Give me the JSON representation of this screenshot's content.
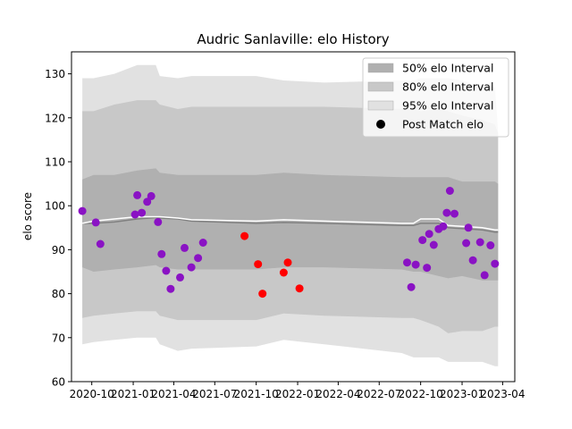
{
  "chart_data": {
    "type": "scatter",
    "title": "Audric Sanlaville: elo History",
    "ylabel": "elo score",
    "xlabel": "",
    "ylim": [
      60,
      135
    ],
    "xlim": [
      "2020-08-17",
      "2023-04-28"
    ],
    "yticks": [
      60,
      70,
      80,
      90,
      100,
      110,
      120,
      130
    ],
    "xticks": [
      {
        "date": "2020-10-01",
        "label": "2020-10"
      },
      {
        "date": "2021-01-01",
        "label": "2021-01"
      },
      {
        "date": "2021-04-01",
        "label": "2021-04"
      },
      {
        "date": "2021-07-01",
        "label": "2021-07"
      },
      {
        "date": "2021-10-01",
        "label": "2021-10"
      },
      {
        "date": "2022-01-01",
        "label": "2022-01"
      },
      {
        "date": "2022-04-01",
        "label": "2022-04"
      },
      {
        "date": "2022-07-01",
        "label": "2022-07"
      },
      {
        "date": "2022-10-01",
        "label": "2022-10"
      },
      {
        "date": "2023-01-01",
        "label": "2023-01"
      },
      {
        "date": "2023-04-01",
        "label": "2023-04"
      }
    ],
    "legend": {
      "placement": "top-right",
      "entries": [
        {
          "label": "50% elo Interval",
          "color": "#b0b0b0"
        },
        {
          "label": "80% elo Interval",
          "color": "#c8c8c8"
        },
        {
          "label": "95% elo Interval",
          "color": "#e1e1e1"
        },
        {
          "label": "Post Match elo",
          "color": "#000000"
        }
      ]
    },
    "colors": {
      "band50": "#b0b0b0",
      "band80": "#c8c8c8",
      "band95": "#e1e1e1",
      "mean_line": "#ffffff",
      "median_line": "#808080",
      "point_purple": "#8a12c4",
      "point_red": "#ff0000"
    },
    "bands": [
      {
        "date": "2020-09-10",
        "mean": 96.0,
        "median": 96.0,
        "lo50": 86,
        "hi50": 106,
        "lo80": 74.5,
        "hi80": 121.5,
        "lo95": 68.5,
        "hi95": 129
      },
      {
        "date": "2020-10-05",
        "mean": 96.5,
        "median": 96.0,
        "lo50": 85,
        "hi50": 107,
        "lo80": 75,
        "hi80": 121.5,
        "lo95": 69,
        "hi95": 129
      },
      {
        "date": "2020-11-20",
        "mean": 97.0,
        "median": 96.3,
        "lo50": 85.5,
        "hi50": 107,
        "lo80": 75.5,
        "hi80": 123,
        "lo95": 69.5,
        "hi95": 130
      },
      {
        "date": "2021-01-10",
        "mean": 97.5,
        "median": 97.0,
        "lo50": 86,
        "hi50": 108,
        "lo80": 76,
        "hi80": 124,
        "lo95": 70,
        "hi95": 132
      },
      {
        "date": "2021-02-20",
        "mean": 97.5,
        "median": 97.3,
        "lo50": 86.5,
        "hi50": 108.5,
        "lo80": 76,
        "hi80": 124,
        "lo95": 70,
        "hi95": 132
      },
      {
        "date": "2021-03-01",
        "mean": 97.5,
        "median": 97.2,
        "lo50": 86,
        "hi50": 107.5,
        "lo80": 75,
        "hi80": 123,
        "lo95": 68.5,
        "hi95": 129.5
      },
      {
        "date": "2021-04-10",
        "mean": 97.2,
        "median": 97.0,
        "lo50": 85.5,
        "hi50": 107,
        "lo80": 74,
        "hi80": 122,
        "lo95": 67,
        "hi95": 129
      },
      {
        "date": "2021-05-10",
        "mean": 96.8,
        "median": 96.5,
        "lo50": 85.5,
        "hi50": 107,
        "lo80": 74,
        "hi80": 122.5,
        "lo95": 67.5,
        "hi95": 129.5
      },
      {
        "date": "2021-10-01",
        "mean": 96.5,
        "median": 96.0,
        "lo50": 85.5,
        "hi50": 107,
        "lo80": 74,
        "hi80": 122.5,
        "lo95": 68,
        "hi95": 129.5
      },
      {
        "date": "2021-12-01",
        "mean": 96.8,
        "median": 96.2,
        "lo50": 86,
        "hi50": 107.5,
        "lo80": 75.5,
        "hi80": 122.5,
        "lo95": 69.5,
        "hi95": 128.5
      },
      {
        "date": "2022-03-01",
        "mean": 96.5,
        "median": 96.0,
        "lo50": 86,
        "hi50": 107,
        "lo80": 75,
        "hi80": 122.5,
        "lo95": 68.5,
        "hi95": 128
      },
      {
        "date": "2022-08-20",
        "mean": 96.0,
        "median": 95.5,
        "lo50": 85.5,
        "hi50": 106.5,
        "lo80": 74.5,
        "hi80": 122,
        "lo95": 66.5,
        "hi95": 128.5
      },
      {
        "date": "2022-09-15",
        "mean": 96.0,
        "median": 95.5,
        "lo50": 85,
        "hi50": 106.5,
        "lo80": 74.5,
        "hi80": 122,
        "lo95": 65.5,
        "hi95": 128.5
      },
      {
        "date": "2022-10-01",
        "mean": 97.0,
        "median": 96.0,
        "lo50": 85,
        "hi50": 106.5,
        "lo80": 74,
        "hi80": 121.5,
        "lo95": 65.5,
        "hi95": 129
      },
      {
        "date": "2022-11-10",
        "mean": 97.0,
        "median": 96.0,
        "lo50": 84,
        "hi50": 106.5,
        "lo80": 72.5,
        "hi80": 122,
        "lo95": 65.5,
        "hi95": 129
      },
      {
        "date": "2022-12-01",
        "mean": 95.5,
        "median": 95.0,
        "lo50": 83.5,
        "hi50": 106.5,
        "lo80": 71,
        "hi80": 121.5,
        "lo95": 64.5,
        "hi95": 129
      },
      {
        "date": "2023-01-01",
        "mean": 95.3,
        "median": 94.8,
        "lo50": 84,
        "hi50": 105.5,
        "lo80": 71.5,
        "hi80": 120.5,
        "lo95": 64.5,
        "hi95": 128.5
      },
      {
        "date": "2023-02-15",
        "mean": 95.0,
        "median": 94.5,
        "lo50": 83,
        "hi50": 105.5,
        "lo80": 71.5,
        "hi80": 119.5,
        "lo95": 64.5,
        "hi95": 127
      },
      {
        "date": "2023-03-15",
        "mean": 94.5,
        "median": 94.0,
        "lo50": 83,
        "hi50": 105.5,
        "lo80": 72.5,
        "hi80": 118.5,
        "lo95": 63.5,
        "hi95": 127
      },
      {
        "date": "2023-03-22",
        "mean": 94.5,
        "median": 94.0,
        "lo50": 83,
        "hi50": 105,
        "lo80": 72.5,
        "hi80": 116.5,
        "lo95": 63.5,
        "hi95": 117
      }
    ],
    "points": [
      {
        "date": "2020-09-10",
        "elo": 98.8,
        "color": "purple"
      },
      {
        "date": "2020-10-10",
        "elo": 96.2,
        "color": "purple"
      },
      {
        "date": "2020-10-20",
        "elo": 91.3,
        "color": "purple"
      },
      {
        "date": "2021-01-05",
        "elo": 98.0,
        "color": "purple"
      },
      {
        "date": "2021-01-10",
        "elo": 102.4,
        "color": "purple"
      },
      {
        "date": "2021-01-20",
        "elo": 98.4,
        "color": "purple"
      },
      {
        "date": "2021-02-01",
        "elo": 100.9,
        "color": "purple"
      },
      {
        "date": "2021-02-10",
        "elo": 102.2,
        "color": "purple"
      },
      {
        "date": "2021-02-25",
        "elo": 96.3,
        "color": "purple"
      },
      {
        "date": "2021-03-05",
        "elo": 89.0,
        "color": "purple"
      },
      {
        "date": "2021-03-15",
        "elo": 85.2,
        "color": "purple"
      },
      {
        "date": "2021-03-25",
        "elo": 81.1,
        "color": "purple"
      },
      {
        "date": "2021-04-15",
        "elo": 83.7,
        "color": "purple"
      },
      {
        "date": "2021-04-25",
        "elo": 90.4,
        "color": "purple"
      },
      {
        "date": "2021-05-10",
        "elo": 86.0,
        "color": "purple"
      },
      {
        "date": "2021-05-25",
        "elo": 88.1,
        "color": "purple"
      },
      {
        "date": "2021-06-05",
        "elo": 91.6,
        "color": "purple"
      },
      {
        "date": "2021-09-05",
        "elo": 93.1,
        "color": "red"
      },
      {
        "date": "2021-10-05",
        "elo": 86.7,
        "color": "red"
      },
      {
        "date": "2021-10-15",
        "elo": 80.0,
        "color": "red"
      },
      {
        "date": "2021-12-01",
        "elo": 84.8,
        "color": "red"
      },
      {
        "date": "2021-12-10",
        "elo": 87.1,
        "color": "red"
      },
      {
        "date": "2022-01-05",
        "elo": 81.2,
        "color": "red"
      },
      {
        "date": "2022-09-01",
        "elo": 87.1,
        "color": "purple"
      },
      {
        "date": "2022-09-10",
        "elo": 81.5,
        "color": "purple"
      },
      {
        "date": "2022-09-20",
        "elo": 86.6,
        "color": "purple"
      },
      {
        "date": "2022-10-05",
        "elo": 92.2,
        "color": "purple"
      },
      {
        "date": "2022-10-15",
        "elo": 85.9,
        "color": "purple"
      },
      {
        "date": "2022-10-20",
        "elo": 93.6,
        "color": "purple"
      },
      {
        "date": "2022-10-30",
        "elo": 91.1,
        "color": "purple"
      },
      {
        "date": "2022-11-10",
        "elo": 94.7,
        "color": "purple"
      },
      {
        "date": "2022-11-20",
        "elo": 95.3,
        "color": "purple"
      },
      {
        "date": "2022-11-28",
        "elo": 98.4,
        "color": "purple"
      },
      {
        "date": "2022-12-05",
        "elo": 103.4,
        "color": "purple"
      },
      {
        "date": "2022-12-15",
        "elo": 98.2,
        "color": "purple"
      },
      {
        "date": "2023-01-10",
        "elo": 91.5,
        "color": "purple"
      },
      {
        "date": "2023-01-15",
        "elo": 95.0,
        "color": "purple"
      },
      {
        "date": "2023-01-25",
        "elo": 87.6,
        "color": "purple"
      },
      {
        "date": "2023-02-10",
        "elo": 91.7,
        "color": "purple"
      },
      {
        "date": "2023-02-20",
        "elo": 84.2,
        "color": "purple"
      },
      {
        "date": "2023-03-05",
        "elo": 91.0,
        "color": "purple"
      },
      {
        "date": "2023-03-15",
        "elo": 86.8,
        "color": "purple"
      }
    ]
  }
}
